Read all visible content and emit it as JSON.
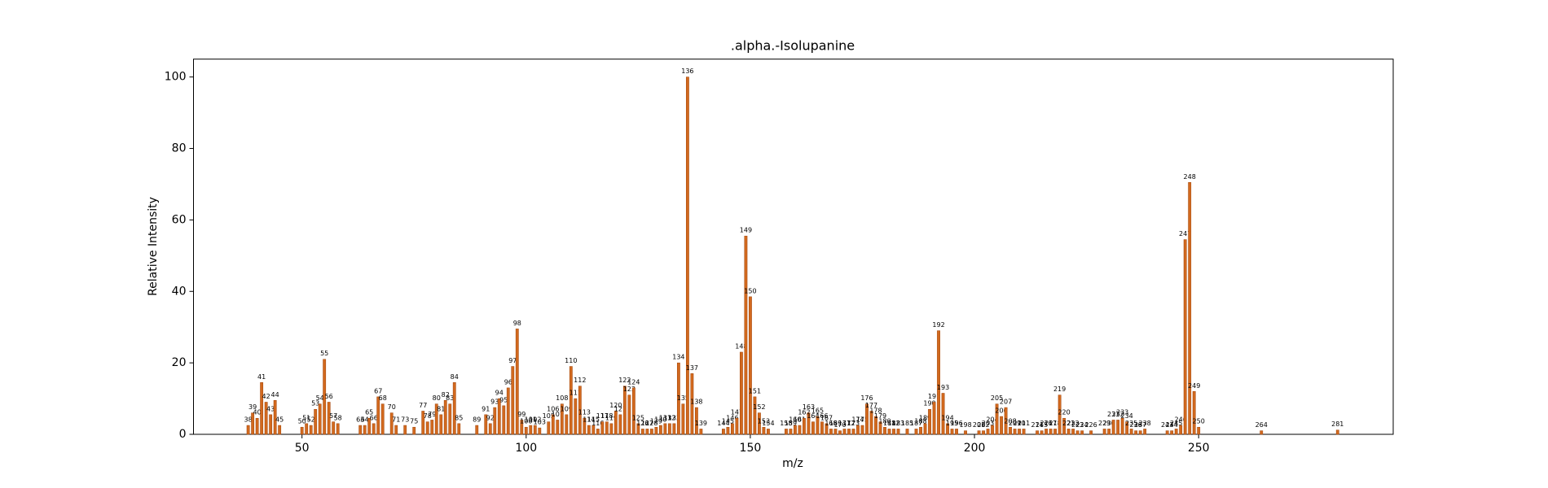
{
  "chart_data": {
    "type": "bar",
    "title": ".alpha.-Isolupanine",
    "xlabel": "m/z",
    "ylabel": "Relative Intensity",
    "color": "#d2691e",
    "x": [
      38,
      39,
      40,
      41,
      42,
      43,
      44,
      45,
      50,
      51,
      52,
      53,
      54,
      55,
      56,
      57,
      58,
      63,
      64,
      65,
      66,
      67,
      68,
      70,
      71,
      73,
      75,
      77,
      78,
      79,
      80,
      81,
      82,
      83,
      84,
      85,
      89,
      91,
      92,
      93,
      94,
      95,
      96,
      97,
      98,
      99,
      100,
      101,
      102,
      103,
      105,
      106,
      107,
      108,
      109,
      110,
      111,
      112,
      113,
      114,
      115,
      116,
      117,
      118,
      119,
      120,
      121,
      122,
      123,
      124,
      125,
      126,
      127,
      128,
      129,
      130,
      131,
      132,
      133,
      134,
      135,
      136,
      137,
      138,
      139,
      144,
      145,
      146,
      147,
      148,
      149,
      150,
      151,
      152,
      153,
      154,
      158,
      159,
      160,
      161,
      162,
      163,
      164,
      165,
      166,
      167,
      168,
      169,
      170,
      171,
      172,
      173,
      174,
      175,
      176,
      177,
      178,
      179,
      180,
      181,
      182,
      183,
      185,
      187,
      188,
      189,
      190,
      191,
      192,
      193,
      194,
      195,
      196,
      198,
      201,
      202,
      203,
      204,
      205,
      206,
      207,
      208,
      209,
      210,
      211,
      214,
      215,
      216,
      217,
      218,
      219,
      220,
      221,
      222,
      223,
      224,
      226,
      229,
      230,
      231,
      232,
      233,
      234,
      235,
      236,
      237,
      238,
      243,
      244,
      245,
      246,
      247,
      248,
      249,
      250,
      264,
      281
    ],
    "values": [
      2.5,
      6,
      4.5,
      14.5,
      9,
      5.5,
      9.5,
      2.5,
      2,
      3,
      2.5,
      7,
      8.5,
      21,
      9,
      3.5,
      3,
      2.5,
      2.5,
      4.5,
      3,
      10.5,
      8.5,
      6,
      2.5,
      2.5,
      2,
      6.5,
      3.5,
      4,
      8.5,
      5.5,
      9.5,
      8.5,
      14.5,
      3,
      2.5,
      5.5,
      3,
      7.5,
      10,
      8,
      13,
      19,
      29.5,
      4,
      2,
      2.5,
      2.5,
      1.8,
      3.5,
      5.5,
      4,
      8.5,
      5.5,
      19,
      10,
      13.5,
      4.5,
      2.5,
      2.5,
      1.5,
      3.5,
      3.5,
      3,
      6.5,
      5.5,
      13.5,
      11,
      13,
      3,
      1.5,
      1.5,
      1.5,
      2,
      2.5,
      3,
      3,
      3,
      20,
      8.5,
      100,
      17,
      7.5,
      1.5,
      1.5,
      2,
      3,
      4.5,
      23,
      55.5,
      38.5,
      10.5,
      6,
      2,
      1.5,
      1.5,
      1.5,
      2.5,
      2.5,
      4.5,
      6,
      3.5,
      5,
      3.5,
      3,
      1.5,
      1.5,
      1,
      1.5,
      1.5,
      1.5,
      2.5,
      2.5,
      8.5,
      6.5,
      5,
      3.5,
      2,
      1.5,
      1.5,
      1.5,
      1.5,
      1.5,
      2,
      3,
      7,
      9,
      29,
      11.5,
      3,
      1.5,
      1.5,
      1,
      1,
      1,
      1.5,
      2.5,
      8.5,
      5,
      7.5,
      2,
      1.5,
      1.5,
      1.5,
      1,
      1,
      1.5,
      1.5,
      1.5,
      11,
      4.5,
      1.5,
      1.5,
      1,
      1,
      1,
      1.5,
      1.5,
      4,
      4,
      4.5,
      3.5,
      1.5,
      1,
      1,
      1.5,
      1,
      1,
      1.5,
      2.5,
      54.5,
      70.5,
      12,
      2,
      1,
      1.2
    ],
    "xlim": [
      25.8,
      293.4
    ],
    "ylim": [
      0,
      105
    ],
    "xticks": [
      50,
      100,
      150,
      200,
      250
    ],
    "yticks": [
      0,
      20,
      40,
      60,
      80,
      100
    ]
  }
}
